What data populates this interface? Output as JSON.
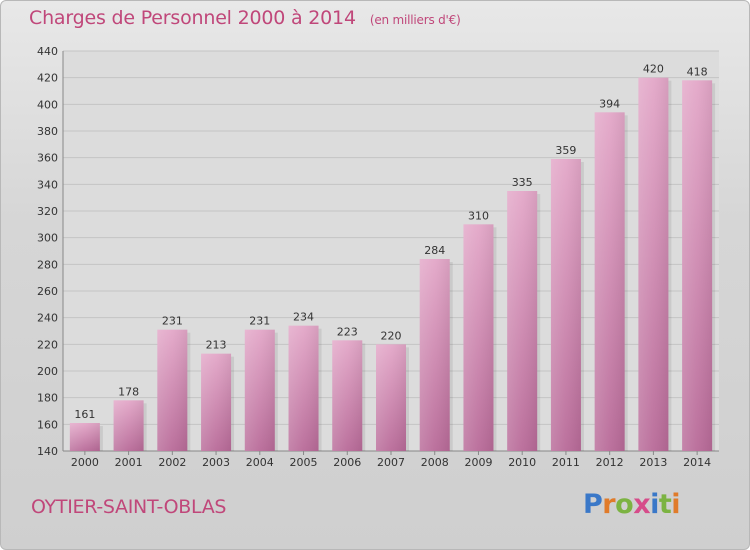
{
  "header": {
    "title": "Charges de Personnel 2000 à 2014",
    "unit": "(en milliers d'€)"
  },
  "footer": {
    "commune": "OYTIER-SAINT-OBLAS",
    "brand": "Proxiti"
  },
  "chart_data": {
    "type": "bar",
    "title": "Charges de Personnel 2000 à 2014",
    "subtitle": "(en milliers d'€)",
    "categories": [
      "2000",
      "2001",
      "2002",
      "2003",
      "2004",
      "2005",
      "2006",
      "2007",
      "2008",
      "2009",
      "2010",
      "2011",
      "2012",
      "2013",
      "2014"
    ],
    "values": [
      161,
      178,
      231,
      213,
      231,
      234,
      223,
      220,
      284,
      310,
      335,
      359,
      394,
      420,
      418
    ],
    "ylim": [
      140,
      440
    ],
    "yticks": [
      140,
      160,
      180,
      200,
      220,
      240,
      260,
      280,
      300,
      320,
      340,
      360,
      380,
      400,
      420,
      440
    ],
    "grid": true,
    "bar_color": "#d98bb3"
  }
}
